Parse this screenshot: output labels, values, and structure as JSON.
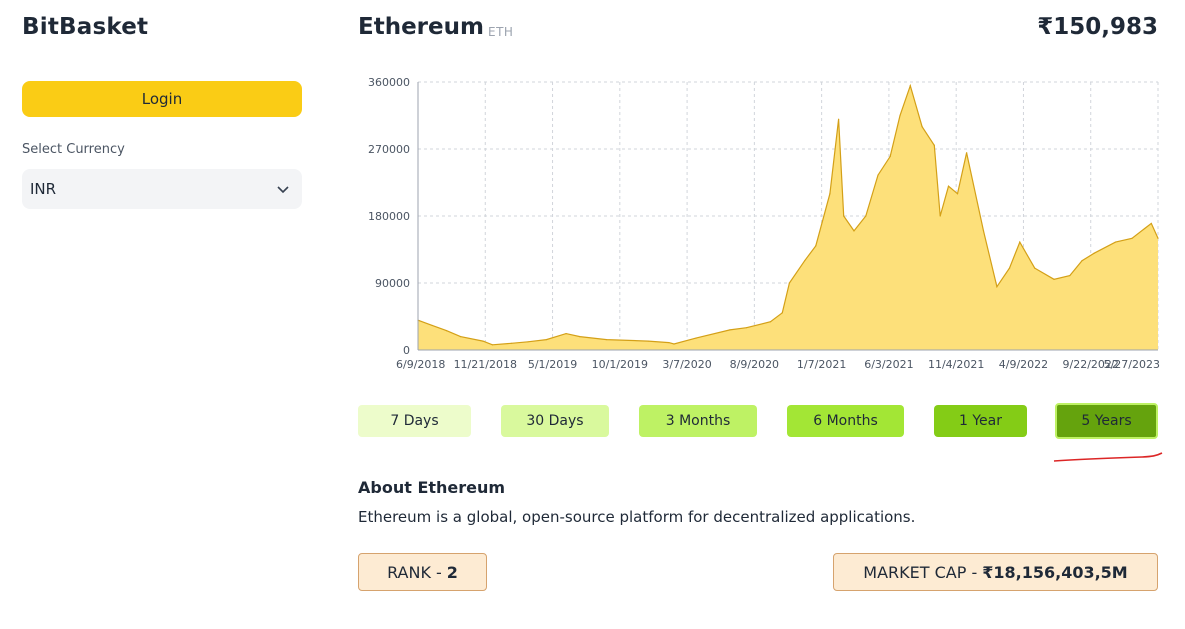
{
  "app": {
    "title": "BitBasket"
  },
  "sidebar": {
    "login_label": "Login",
    "currency_label": "Select Currency",
    "currency_value": "INR",
    "currency_icon": "chevron-down-icon"
  },
  "coin": {
    "name": "Ethereum",
    "symbol": "ETH",
    "price": "₹150,983"
  },
  "chart_data": {
    "type": "area",
    "title": "",
    "xlabel": "",
    "ylabel": "",
    "ylim": [
      0,
      360000
    ],
    "yticks": [
      0,
      90000,
      180000,
      270000,
      360000
    ],
    "xtick_labels": [
      "6/9/2018",
      "11/21/2018",
      "5/1/2019",
      "10/1/2019",
      "3/7/2020",
      "8/9/2020",
      "1/7/2021",
      "6/3/2021",
      "11/4/2021",
      "4/9/2022",
      "9/22/2022",
      "5/27/2023"
    ],
    "grid": true,
    "legend": "none",
    "colors": {
      "fill": "#fde07a",
      "line": "#d4a017"
    },
    "x": [
      "2018-06-09",
      "2018-07-15",
      "2018-08-20",
      "2018-09-25",
      "2018-11-21",
      "2018-12-15",
      "2019-02-01",
      "2019-03-15",
      "2019-05-01",
      "2019-06-20",
      "2019-07-25",
      "2019-10-01",
      "2020-01-15",
      "2020-03-07",
      "2020-03-20",
      "2020-05-15",
      "2020-08-09",
      "2020-09-20",
      "2020-11-20",
      "2020-12-20",
      "2021-01-07",
      "2021-02-15",
      "2021-03-15",
      "2021-04-20",
      "2021-05-12",
      "2021-05-25",
      "2021-06-20",
      "2021-07-20",
      "2021-08-20",
      "2021-09-20",
      "2021-10-15",
      "2021-11-10",
      "2021-12-10",
      "2022-01-10",
      "2022-01-25",
      "2022-02-15",
      "2022-03-10",
      "2022-04-02",
      "2022-05-15",
      "2022-06-18",
      "2022-07-20",
      "2022-08-15",
      "2022-09-22",
      "2022-11-10",
      "2022-12-20",
      "2023-01-20",
      "2023-02-20",
      "2023-04-15",
      "2023-05-27",
      "2023-07-15",
      "2023-08-01"
    ],
    "values": [
      40000,
      33000,
      26000,
      18000,
      12000,
      7000,
      9000,
      11000,
      14000,
      22000,
      18000,
      14000,
      12000,
      10000,
      8000,
      16000,
      27000,
      30000,
      38000,
      50000,
      90000,
      120000,
      140000,
      210000,
      310000,
      180000,
      160000,
      180000,
      235000,
      260000,
      315000,
      355000,
      300000,
      275000,
      180000,
      220000,
      210000,
      265000,
      160000,
      85000,
      110000,
      145000,
      110000,
      95000,
      100000,
      120000,
      130000,
      145000,
      150000,
      170000,
      150000
    ]
  },
  "ranges": [
    {
      "label": "7 Days",
      "color": "#edfccb"
    },
    {
      "label": "30 Days",
      "color": "#d9f99d"
    },
    {
      "label": "3 Months",
      "color": "#bef264"
    },
    {
      "label": "6 Months",
      "color": "#a3e635"
    },
    {
      "label": "1 Year",
      "color": "#84cc16"
    },
    {
      "label": "5 Years",
      "color": "#65a30d",
      "selected": true
    }
  ],
  "about": {
    "title": "About Ethereum",
    "text": "Ethereum is a global, open-source platform for decentralized applications."
  },
  "stats": {
    "rank_label": "RANK -",
    "rank_value": "2",
    "market_cap_label": "MARKET CAP -",
    "market_cap_value": "₹18,156,403,5M"
  },
  "annotation": {
    "underline_color": "#dc2626"
  }
}
